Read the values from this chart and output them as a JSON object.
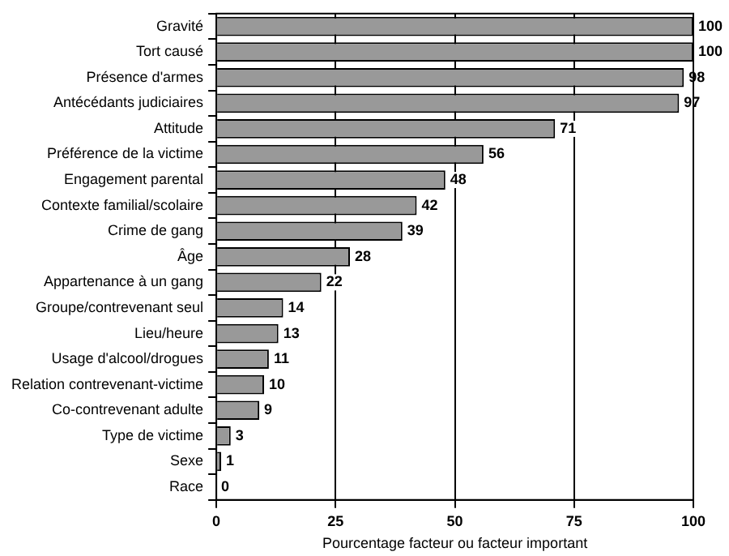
{
  "chart_data": {
    "type": "bar",
    "orientation": "horizontal",
    "xlabel": "Pourcentage facteur ou facteur important",
    "categories": [
      "Gravité",
      "Tort causé",
      "Présence d'armes",
      "Antécédants judiciaires",
      "Attitude",
      "Préférence de la victime",
      "Engagement parental",
      "Contexte familial/scolaire",
      "Crime de gang",
      "Âge",
      "Appartenance à un gang",
      "Groupe/contrevenant seul",
      "Lieu/heure",
      "Usage d'alcool/drogues",
      "Relation contrevenant-victime",
      "Co-contrevenant adulte",
      "Type de victime",
      "Sexe",
      "Race"
    ],
    "values": [
      100,
      100,
      98,
      97,
      71,
      56,
      48,
      42,
      39,
      28,
      22,
      14,
      13,
      11,
      10,
      9,
      3,
      1,
      0
    ],
    "color": "#999999",
    "xlim": [
      0,
      100
    ],
    "xticks": [
      0,
      25,
      50,
      75,
      100
    ],
    "grid": "x",
    "data_labels": true
  }
}
